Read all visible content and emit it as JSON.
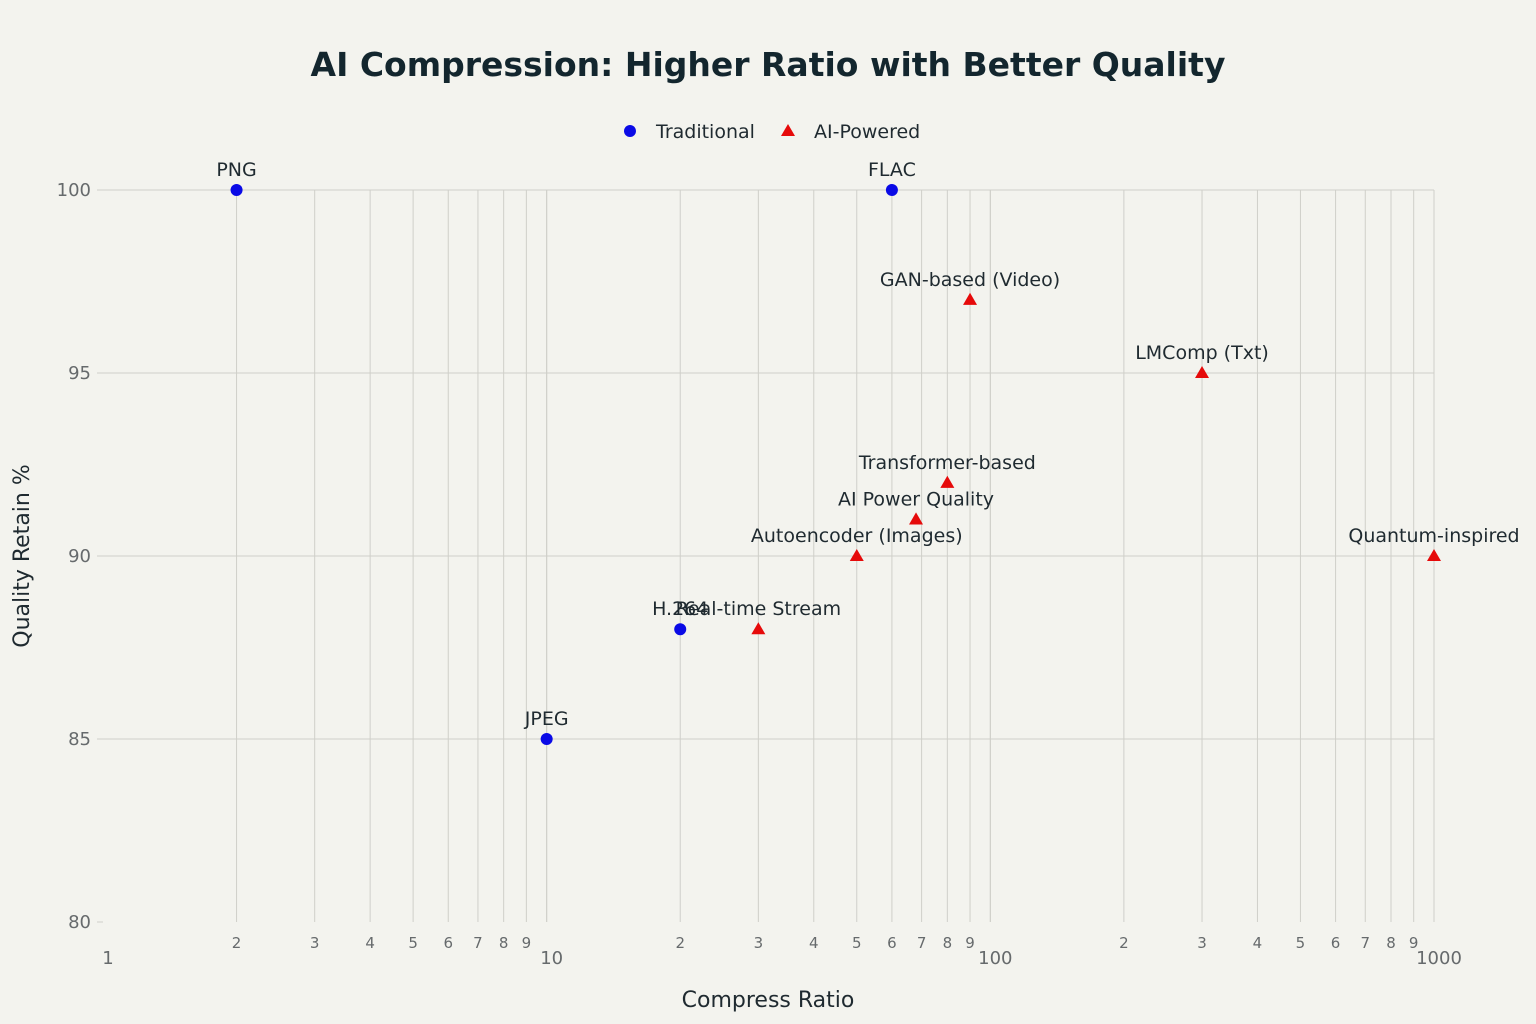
{
  "chart_data": {
    "type": "scatter",
    "title": "AI Compression: Higher Ratio with Better Quality",
    "xlabel": "Compress Ratio",
    "ylabel": "Quality Retain %",
    "x_scale": "log",
    "xlim": [
      1,
      1000
    ],
    "ylim": [
      80,
      100
    ],
    "x_major_ticks": [
      1,
      10,
      100,
      1000
    ],
    "x_major_tick_labels": [
      "1",
      "10",
      "100",
      "1000"
    ],
    "x_minor_tick_labels": [
      "2",
      "3",
      "4",
      "5",
      "6",
      "7",
      "8",
      "9"
    ],
    "y_ticks": [
      80,
      85,
      90,
      95,
      100
    ],
    "y_tick_labels": [
      "80",
      "85",
      "90",
      "95",
      "100"
    ],
    "grid": true,
    "legend": {
      "placement": "top-center",
      "orientation": "horizontal"
    },
    "series": [
      {
        "name": "Traditional",
        "marker": "circle",
        "color": "#0a0ae6",
        "points": [
          {
            "label": "PNG",
            "x": 2,
            "y": 100
          },
          {
            "label": "FLAC",
            "x": 60,
            "y": 100
          },
          {
            "label": "H.264",
            "x": 20,
            "y": 88
          },
          {
            "label": "JPEG",
            "x": 10,
            "y": 85
          }
        ]
      },
      {
        "name": "AI-Powered",
        "marker": "triangle",
        "color": "#e60a0a",
        "points": [
          {
            "label": "GAN-based (Video)",
            "x": 90,
            "y": 97
          },
          {
            "label": "LMComp (Txt)",
            "x": 300,
            "y": 95
          },
          {
            "label": "Transformer-based",
            "x": 80,
            "y": 92
          },
          {
            "label": "AI Power Quality",
            "x": 68,
            "y": 91
          },
          {
            "label": "Autoencoder (Images)",
            "x": 50,
            "y": 90
          },
          {
            "label": "Quantum-inspired",
            "x": 1000,
            "y": 90
          },
          {
            "label": "Real-time Stream",
            "x": 30,
            "y": 88
          }
        ]
      }
    ]
  }
}
